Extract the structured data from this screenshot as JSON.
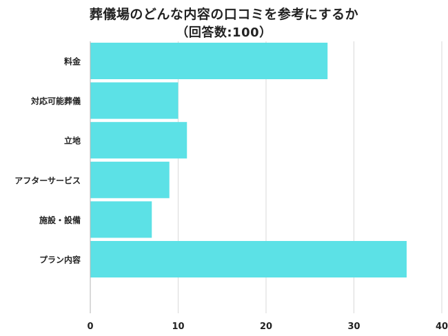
{
  "chart_data": {
    "type": "bar",
    "orientation": "horizontal",
    "title": "葬儀場のどんな内容の口コミを参考にするか",
    "subtitle": "（回答数:100）",
    "categories": [
      "料金",
      "対応可能葬儀",
      "立地",
      "アフターサービス",
      "施設・設備",
      "プラン内容"
    ],
    "values": [
      27,
      10,
      11,
      9,
      7,
      36
    ],
    "xlim": [
      0,
      40
    ],
    "xticks": [
      0,
      10,
      20,
      30,
      40
    ],
    "grid": true,
    "bar_color": "#5ce1e6",
    "grid_color": "#d9d9d9"
  }
}
